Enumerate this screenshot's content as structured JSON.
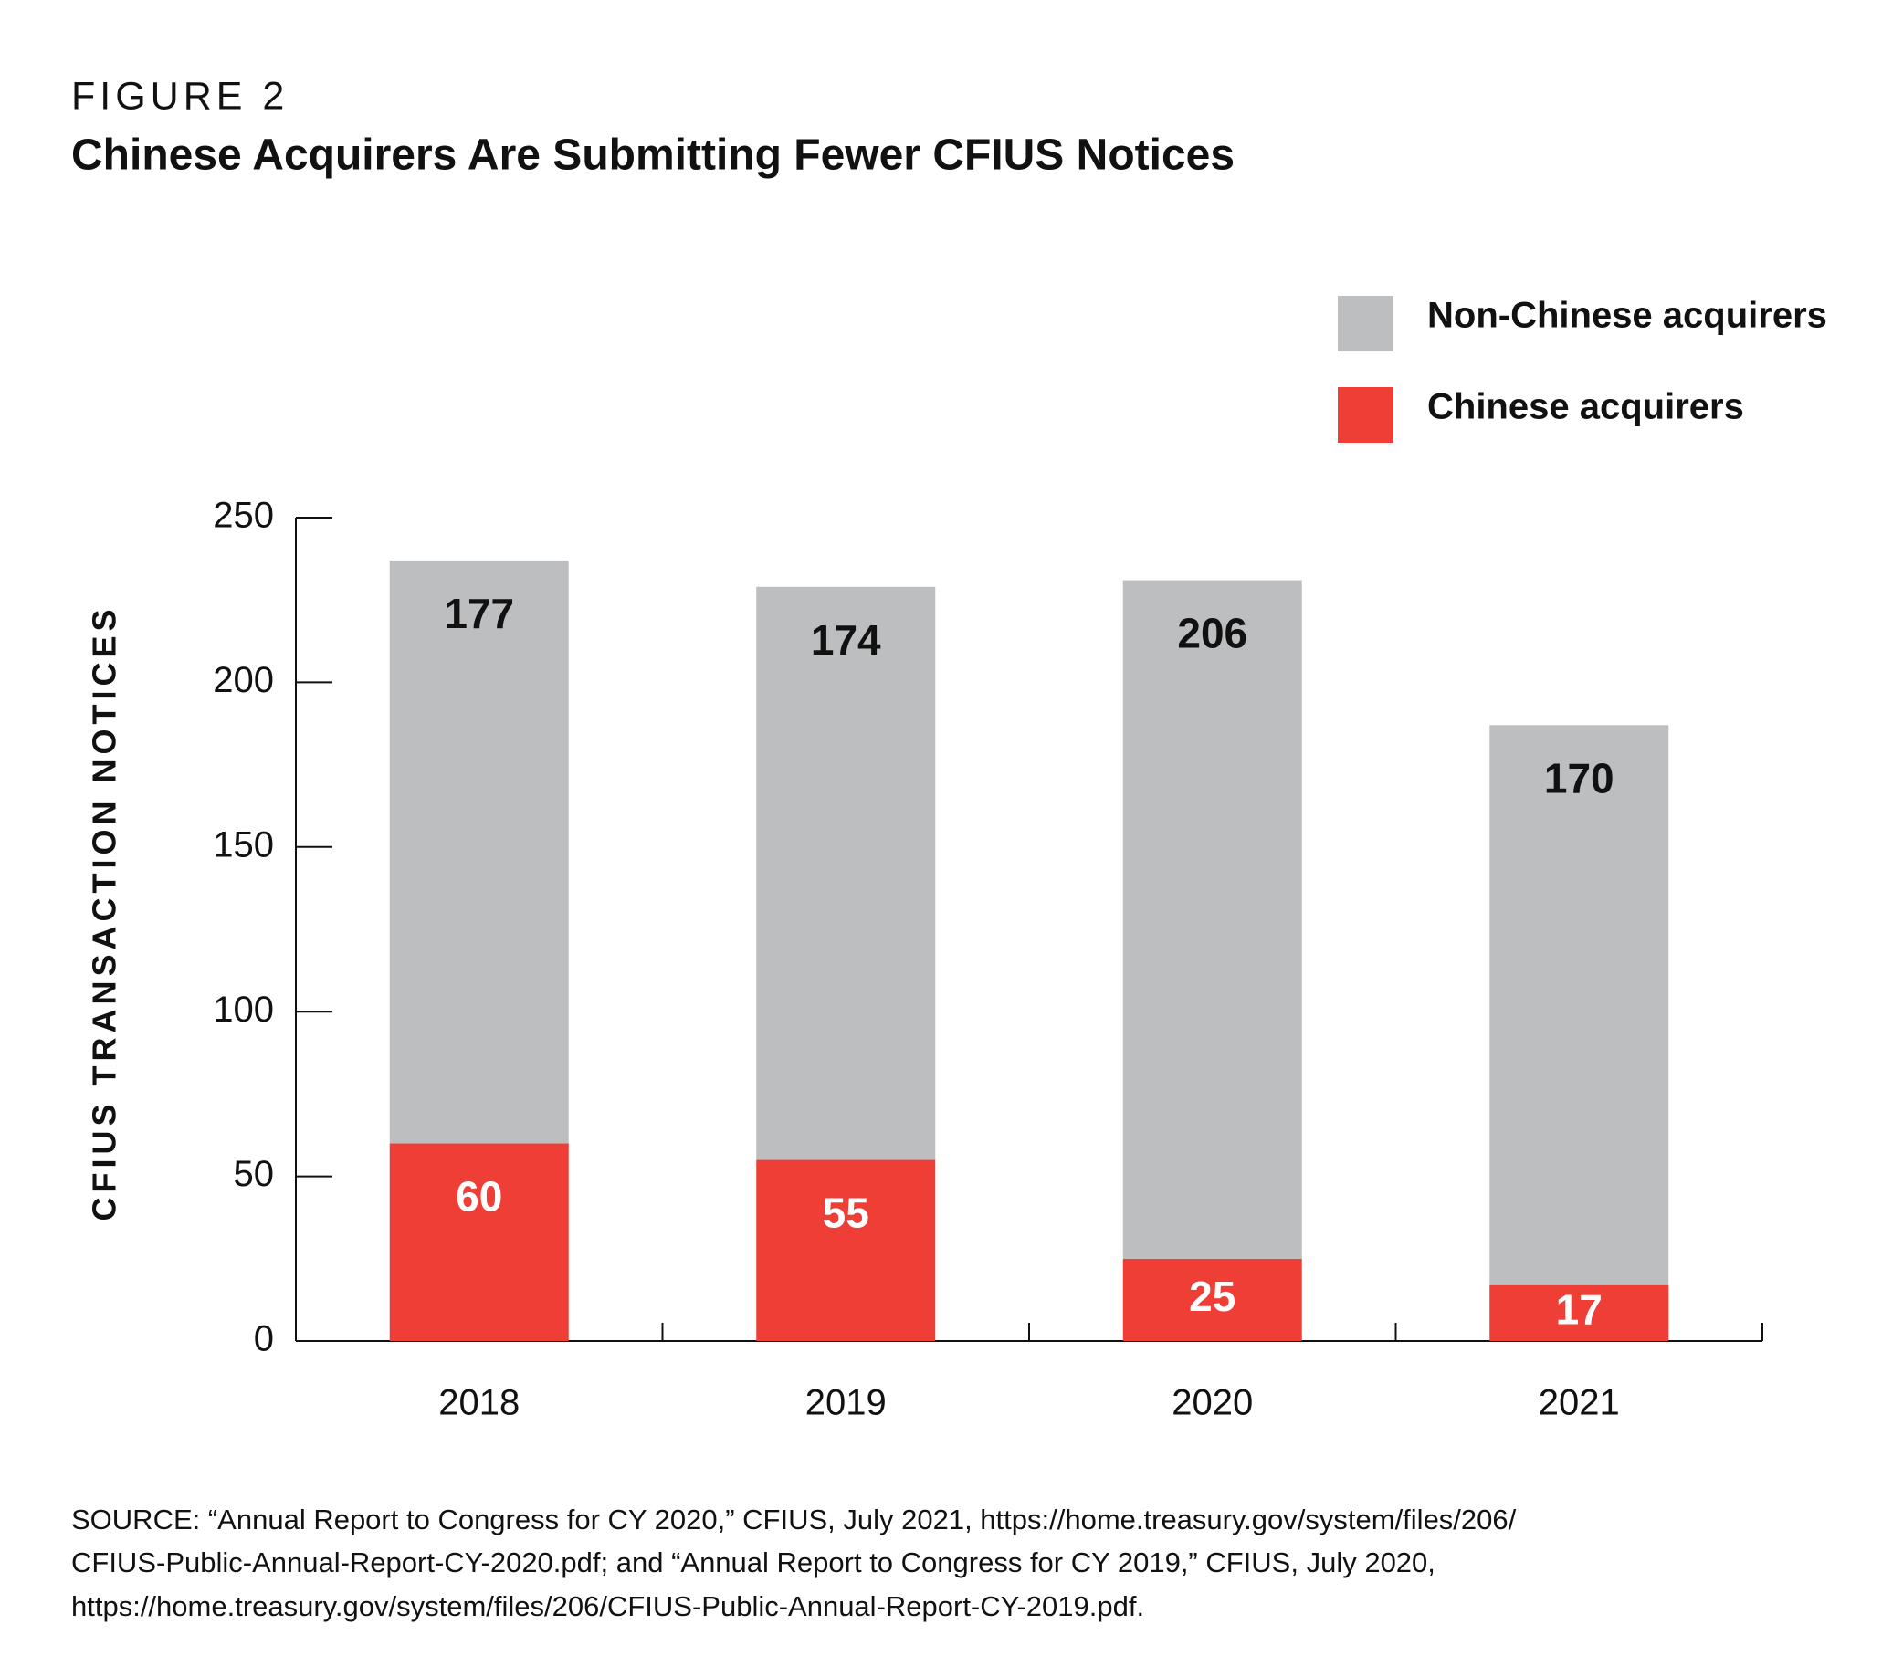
{
  "chart_data": {
    "type": "stacked-bar",
    "figure_label": "FIGURE 2",
    "title": "Chinese Acquirers Are Submitting Fewer CFIUS Notices",
    "y_label": "CFIUS TRANSACTION NOTICES",
    "categories": [
      "2018",
      "2019",
      "2020",
      "2021"
    ],
    "series": [
      {
        "name": "Chinese acquirers",
        "color": "#ee3e36",
        "label_color": "#ffffff",
        "values": [
          60,
          55,
          25,
          17
        ]
      },
      {
        "name": "Non-Chinese acquirers",
        "color": "#bdbec0",
        "label_color": "#111111",
        "values": [
          177,
          174,
          206,
          170
        ]
      }
    ],
    "ylim": [
      0,
      250
    ],
    "yticks": [
      0,
      50,
      100,
      150,
      200,
      250
    ],
    "grid": false,
    "legend": "top-right",
    "source": [
      "SOURCE: “Annual Report to Congress for CY 2020,” CFIUS, July 2021, https://home.treasury.gov/system/files/206/",
      "CFIUS-Public-Annual-Report-CY-2020.pdf; and “Annual Report to Congress for CY 2019,” CFIUS, July 2020,",
      "https://home.treasury.gov/system/files/206/CFIUS-Public-Annual-Report-CY-2019.pdf."
    ]
  }
}
